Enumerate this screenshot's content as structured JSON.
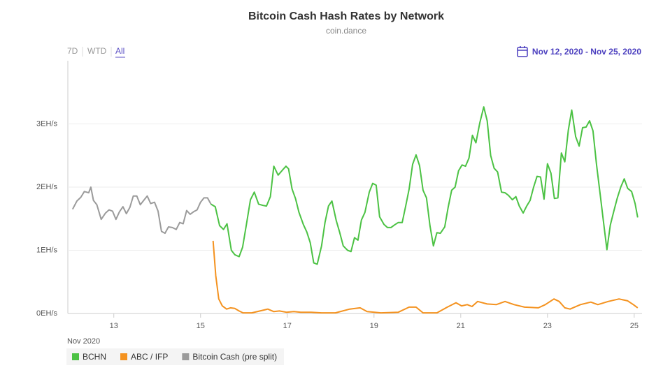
{
  "chart_data": {
    "type": "line",
    "title": "Bitcoin Cash Hash Rates by Network",
    "subtitle": "coin.dance",
    "range_buttons": [
      "7D",
      "WTD",
      "All"
    ],
    "date_range": "Nov 12, 2020 - Nov 25, 2020",
    "x_label": "Nov 2020",
    "xlim": [
      11.94,
      25.18
    ],
    "xticks": [
      13,
      15,
      17,
      19,
      21,
      23,
      25
    ],
    "ylim": [
      0,
      4
    ],
    "yticks": [
      {
        "value": 0,
        "label": "0EH/s"
      },
      {
        "value": 1,
        "label": "1EH/s"
      },
      {
        "value": 2,
        "label": "2EH/s"
      },
      {
        "value": 3,
        "label": "3EH/s"
      }
    ],
    "grid": true,
    "legend": "bottom-left",
    "series": [
      {
        "name": "BCHN",
        "color": "#4cc244",
        "x": [
          15.24,
          15.34,
          15.44,
          15.53,
          15.61,
          15.71,
          15.79,
          15.89,
          15.97,
          16.06,
          16.15,
          16.24,
          16.34,
          16.44,
          16.52,
          16.61,
          16.69,
          16.79,
          16.89,
          16.97,
          17.03,
          17.11,
          17.19,
          17.27,
          17.37,
          17.45,
          17.53,
          17.61,
          17.69,
          17.79,
          17.87,
          17.95,
          18.03,
          18.13,
          18.21,
          18.29,
          18.39,
          18.47,
          18.55,
          18.63,
          18.71,
          18.79,
          18.89,
          18.97,
          19.05,
          19.13,
          19.23,
          19.31,
          19.39,
          19.47,
          19.56,
          19.65,
          19.73,
          19.81,
          19.89,
          19.97,
          20.05,
          20.13,
          20.21,
          20.29,
          20.37,
          20.45,
          20.53,
          20.63,
          20.71,
          20.79,
          20.87,
          20.95,
          21.03,
          21.11,
          21.19,
          21.27,
          21.35,
          21.44,
          21.53,
          21.61,
          21.69,
          21.77,
          21.85,
          21.94,
          22.02,
          22.1,
          22.19,
          22.27,
          22.35,
          22.44,
          22.52,
          22.6,
          22.68,
          22.76,
          22.84,
          22.92,
          23.0,
          23.08,
          23.16,
          23.24,
          23.32,
          23.4,
          23.48,
          23.56,
          23.65,
          23.73,
          23.81,
          23.89,
          23.97,
          24.05,
          24.13,
          24.21,
          24.29,
          24.37,
          24.45,
          24.53,
          24.61,
          24.69,
          24.77,
          24.85,
          24.94,
          25.02,
          25.08
        ],
        "values": [
          1.73,
          1.69,
          1.39,
          1.33,
          1.42,
          1.0,
          0.93,
          0.9,
          1.05,
          1.42,
          1.8,
          1.92,
          1.73,
          1.71,
          1.7,
          1.85,
          2.33,
          2.19,
          2.27,
          2.33,
          2.29,
          1.97,
          1.82,
          1.6,
          1.41,
          1.29,
          1.12,
          0.8,
          0.78,
          1.07,
          1.44,
          1.7,
          1.78,
          1.47,
          1.28,
          1.07,
          1.0,
          0.98,
          1.2,
          1.16,
          1.48,
          1.6,
          1.92,
          2.06,
          2.03,
          1.53,
          1.41,
          1.36,
          1.36,
          1.4,
          1.44,
          1.44,
          1.7,
          1.97,
          2.36,
          2.51,
          2.34,
          1.95,
          1.83,
          1.39,
          1.07,
          1.28,
          1.27,
          1.37,
          1.68,
          1.95,
          2.0,
          2.26,
          2.35,
          2.33,
          2.46,
          2.82,
          2.7,
          3.02,
          3.27,
          3.05,
          2.5,
          2.3,
          2.24,
          1.92,
          1.91,
          1.87,
          1.8,
          1.85,
          1.7,
          1.59,
          1.7,
          1.79,
          2.0,
          2.17,
          2.16,
          1.81,
          2.37,
          2.22,
          1.82,
          1.83,
          2.54,
          2.4,
          2.9,
          3.22,
          2.8,
          2.65,
          2.94,
          2.95,
          3.05,
          2.89,
          2.36,
          1.91,
          1.46,
          1.01,
          1.4,
          1.62,
          1.83,
          2.0,
          2.13,
          1.98,
          1.93,
          1.74,
          1.52
        ]
      },
      {
        "name": "ABC / IFP",
        "color": "#f4921f",
        "x": [
          15.29,
          15.35,
          15.42,
          15.5,
          15.6,
          15.69,
          15.79,
          15.89,
          15.98,
          16.18,
          16.37,
          16.55,
          16.69,
          16.82,
          16.98,
          17.15,
          17.31,
          17.55,
          17.79,
          18.11,
          18.44,
          18.68,
          18.84,
          19.16,
          19.56,
          19.81,
          19.97,
          20.13,
          20.45,
          20.69,
          20.89,
          21.02,
          21.15,
          21.26,
          21.39,
          21.61,
          21.82,
          22.02,
          22.23,
          22.47,
          22.79,
          22.95,
          23.15,
          23.27,
          23.4,
          23.52,
          23.76,
          24.0,
          24.16,
          24.4,
          24.65,
          24.85,
          24.98,
          25.08
        ],
        "values": [
          1.15,
          0.6,
          0.23,
          0.12,
          0.07,
          0.09,
          0.08,
          0.04,
          0.01,
          0.01,
          0.04,
          0.07,
          0.03,
          0.04,
          0.02,
          0.03,
          0.02,
          0.02,
          0.01,
          0.01,
          0.07,
          0.09,
          0.03,
          0.01,
          0.02,
          0.1,
          0.1,
          0.01,
          0.01,
          0.1,
          0.17,
          0.12,
          0.14,
          0.11,
          0.19,
          0.15,
          0.14,
          0.19,
          0.14,
          0.1,
          0.09,
          0.14,
          0.23,
          0.19,
          0.09,
          0.07,
          0.14,
          0.18,
          0.14,
          0.19,
          0.23,
          0.2,
          0.14,
          0.09
        ]
      },
      {
        "name": "Bitcoin Cash (pre split)",
        "color": "#9b9b9b",
        "x": [
          12.05,
          12.15,
          12.24,
          12.32,
          12.42,
          12.47,
          12.53,
          12.61,
          12.71,
          12.81,
          12.89,
          12.97,
          13.05,
          13.13,
          13.21,
          13.29,
          13.37,
          13.45,
          13.53,
          13.61,
          13.69,
          13.77,
          13.85,
          13.94,
          14.02,
          14.1,
          14.18,
          14.26,
          14.35,
          14.44,
          14.52,
          14.6,
          14.68,
          14.76,
          14.84,
          14.92,
          15.0,
          15.08,
          15.16,
          15.24
        ],
        "values": [
          1.65,
          1.78,
          1.84,
          1.93,
          1.91,
          2.0,
          1.79,
          1.72,
          1.49,
          1.59,
          1.64,
          1.62,
          1.49,
          1.61,
          1.69,
          1.58,
          1.68,
          1.86,
          1.86,
          1.72,
          1.79,
          1.86,
          1.74,
          1.76,
          1.62,
          1.3,
          1.27,
          1.37,
          1.36,
          1.33,
          1.44,
          1.42,
          1.63,
          1.57,
          1.61,
          1.64,
          1.76,
          1.83,
          1.83,
          1.73
        ]
      }
    ]
  }
}
